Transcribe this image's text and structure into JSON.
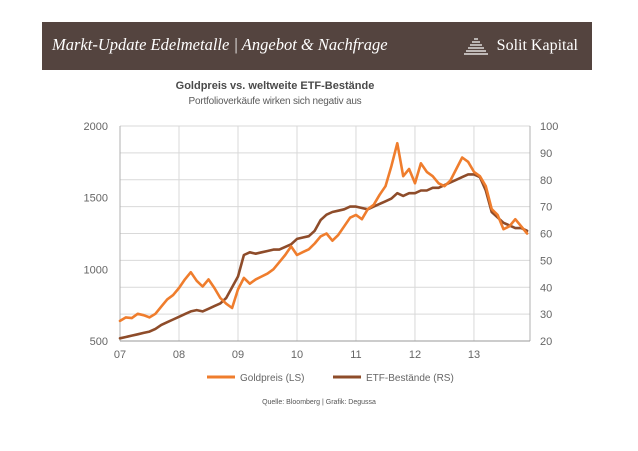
{
  "header": {
    "title": "Markt-Update Edelmetalle | Angebot & Nachfrage",
    "brand": "Solit Kapital"
  },
  "colors": {
    "banner": "#54443f",
    "gold_series": "#ef7d2d",
    "etf_series": "#8e4c2a",
    "grid": "#d9d9d9"
  },
  "chart_data": {
    "type": "line",
    "title": "Goldpreis vs. weltweite ETF-Bestände",
    "subtitle": "Portfolioverkäufe wirken sich negativ aus",
    "source": "Quelle: Bloomberg | Grafik: Degussa",
    "x_ticks": [
      "07",
      "08",
      "09",
      "10",
      "11",
      "12",
      "13"
    ],
    "xlim": [
      2007.0,
      2013.95
    ],
    "y_left": {
      "label": "LS",
      "ylim": [
        500,
        2000
      ],
      "ticks": [
        "500",
        "1000",
        "1500",
        "2000"
      ]
    },
    "y_right": {
      "label": "RS",
      "ylim": [
        20,
        100
      ],
      "ticks": [
        "20",
        "30",
        "40",
        "50",
        "60",
        "70",
        "80",
        "90",
        "100"
      ]
    },
    "legend": [
      "Goldpreis (LS)",
      "ETF-Bestände (RS)"
    ],
    "series": [
      {
        "name": "Goldpreis (LS)",
        "axis": "left",
        "x": [
          2007.0,
          2007.1,
          2007.2,
          2007.3,
          2007.4,
          2007.5,
          2007.6,
          2007.7,
          2007.8,
          2007.9,
          2008.0,
          2008.1,
          2008.2,
          2008.3,
          2008.4,
          2008.5,
          2008.6,
          2008.7,
          2008.8,
          2008.9,
          2009.0,
          2009.1,
          2009.2,
          2009.3,
          2009.4,
          2009.5,
          2009.6,
          2009.7,
          2009.8,
          2009.9,
          2010.0,
          2010.1,
          2010.2,
          2010.3,
          2010.4,
          2010.5,
          2010.6,
          2010.7,
          2010.8,
          2010.9,
          2011.0,
          2011.1,
          2011.2,
          2011.3,
          2011.4,
          2011.5,
          2011.6,
          2011.7,
          2011.8,
          2011.9,
          2012.0,
          2012.1,
          2012.2,
          2012.3,
          2012.4,
          2012.5,
          2012.6,
          2012.7,
          2012.8,
          2012.9,
          2013.0,
          2013.1,
          2013.2,
          2013.3,
          2013.4,
          2013.5,
          2013.6,
          2013.7,
          2013.8,
          2013.9
        ],
        "values": [
          640,
          665,
          660,
          690,
          680,
          665,
          690,
          740,
          790,
          820,
          870,
          930,
          980,
          920,
          880,
          930,
          870,
          800,
          760,
          730,
          860,
          940,
          900,
          930,
          950,
          970,
          1000,
          1050,
          1100,
          1160,
          1100,
          1120,
          1140,
          1180,
          1230,
          1250,
          1200,
          1240,
          1300,
          1360,
          1380,
          1350,
          1420,
          1450,
          1520,
          1580,
          1720,
          1880,
          1650,
          1700,
          1600,
          1740,
          1680,
          1650,
          1600,
          1580,
          1620,
          1700,
          1780,
          1750,
          1680,
          1650,
          1580,
          1420,
          1380,
          1280,
          1300,
          1350,
          1300,
          1250
        ]
      },
      {
        "name": "ETF-Bestände (RS)",
        "axis": "right",
        "x": [
          2007.0,
          2007.1,
          2007.2,
          2007.3,
          2007.4,
          2007.5,
          2007.6,
          2007.7,
          2007.8,
          2007.9,
          2008.0,
          2008.1,
          2008.2,
          2008.3,
          2008.4,
          2008.5,
          2008.6,
          2008.7,
          2008.8,
          2008.9,
          2009.0,
          2009.1,
          2009.2,
          2009.3,
          2009.4,
          2009.5,
          2009.6,
          2009.7,
          2009.8,
          2009.9,
          2010.0,
          2010.1,
          2010.2,
          2010.3,
          2010.4,
          2010.5,
          2010.6,
          2010.7,
          2010.8,
          2010.9,
          2011.0,
          2011.1,
          2011.2,
          2011.3,
          2011.4,
          2011.5,
          2011.6,
          2011.7,
          2011.8,
          2011.9,
          2012.0,
          2012.1,
          2012.2,
          2012.3,
          2012.4,
          2012.5,
          2012.6,
          2012.7,
          2012.8,
          2012.9,
          2013.0,
          2013.1,
          2013.2,
          2013.3,
          2013.4,
          2013.5,
          2013.6,
          2013.7,
          2013.8,
          2013.9
        ],
        "values": [
          21,
          21.5,
          22,
          22.5,
          23,
          23.5,
          24.5,
          26,
          27,
          28,
          29,
          30,
          31,
          31.5,
          31,
          32,
          33,
          34,
          36,
          40,
          44,
          52,
          53,
          52.5,
          53,
          53.5,
          54,
          54,
          55,
          56,
          58,
          58.5,
          59,
          61,
          65,
          67,
          68,
          68.5,
          69,
          70,
          70,
          69.5,
          69,
          70,
          71,
          72,
          73,
          75,
          74,
          75,
          75,
          76,
          76,
          77,
          77,
          78,
          79,
          80,
          81,
          82,
          82,
          81,
          76,
          68,
          66,
          64,
          63,
          62,
          62,
          61
        ]
      }
    ]
  }
}
